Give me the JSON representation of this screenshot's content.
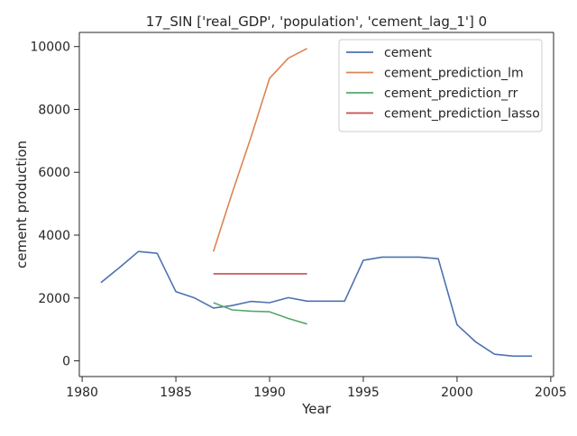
{
  "chart_data": {
    "type": "line",
    "title": "17_SIN ['real_GDP', 'population', 'cement_lag_1'] 0",
    "xlabel": "Year",
    "ylabel": "cement production",
    "xlim": [
      1979.85,
      2005.15
    ],
    "ylim": [
      -500,
      10450
    ],
    "xticks": [
      1980,
      1985,
      1990,
      1995,
      2000,
      2005
    ],
    "yticks": [
      0,
      2000,
      4000,
      6000,
      8000,
      10000
    ],
    "grid": false,
    "legend_position": "top-right",
    "series": [
      {
        "name": "cement",
        "color": "#4c72b0",
        "x": [
          1981,
          1982,
          1983,
          1984,
          1985,
          1986,
          1987,
          1988,
          1989,
          1990,
          1991,
          1992,
          1993,
          1994,
          1995,
          1996,
          1997,
          1998,
          1999,
          2000,
          2001,
          2002,
          2003,
          2004
        ],
        "values": [
          2490,
          2970,
          3480,
          3420,
          2200,
          2000,
          1680,
          1760,
          1890,
          1850,
          2010,
          1900,
          1900,
          1900,
          3200,
          3300,
          3300,
          3300,
          3250,
          1150,
          600,
          210,
          150,
          150
        ]
      },
      {
        "name": "cement_prediction_lm",
        "color": "#dd8452",
        "x": [
          1987,
          1988,
          1989,
          1990,
          1991,
          1992
        ],
        "values": [
          3480,
          5330,
          7100,
          8990,
          9630,
          9940
        ]
      },
      {
        "name": "cement_prediction_rr",
        "color": "#55a868",
        "x": [
          1987,
          1988,
          1989,
          1990,
          1991,
          1992
        ],
        "values": [
          1850,
          1620,
          1580,
          1560,
          1350,
          1170
        ]
      },
      {
        "name": "cement_prediction_lasso",
        "color": "#c44e52",
        "x": [
          1987,
          1988,
          1989,
          1990,
          1991,
          1992
        ],
        "values": [
          2770,
          2770,
          2770,
          2770,
          2770,
          2770
        ]
      }
    ]
  }
}
